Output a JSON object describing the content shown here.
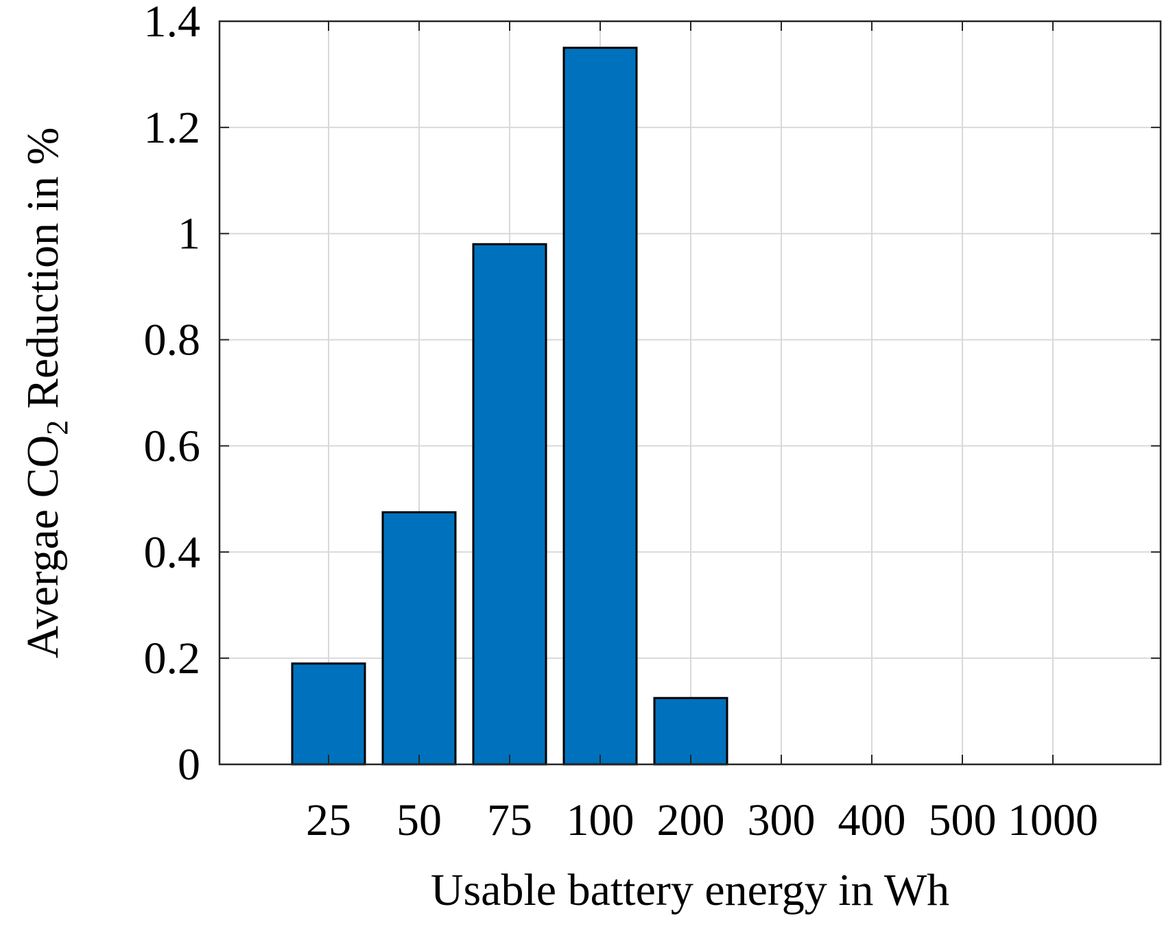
{
  "chart_data": {
    "type": "bar",
    "categories": [
      "25",
      "50",
      "75",
      "100",
      "200",
      "300",
      "400",
      "500",
      "1000"
    ],
    "values": [
      0.19,
      0.475,
      0.98,
      1.35,
      0.125,
      0,
      0,
      0,
      0
    ],
    "xlabel": "Usable battery energy in Wh",
    "ylabel": {
      "prefix": "Avergae CO",
      "subscript": "2",
      "suffix": " Reduction in %"
    },
    "ylim": [
      0,
      1.4
    ],
    "yticks": [
      0,
      0.2,
      0.4,
      0.6,
      0.8,
      1,
      1.2,
      1.4
    ],
    "ytick_labels": [
      "0",
      "0.2",
      "0.4",
      "0.6",
      "0.8",
      "1",
      "1.2",
      "1.4"
    ],
    "grid": true,
    "colors": {
      "bar_fill": "#0072BD",
      "bar_edge": "#000000",
      "grid": "#d9d9d9",
      "axis": "#262626"
    }
  }
}
